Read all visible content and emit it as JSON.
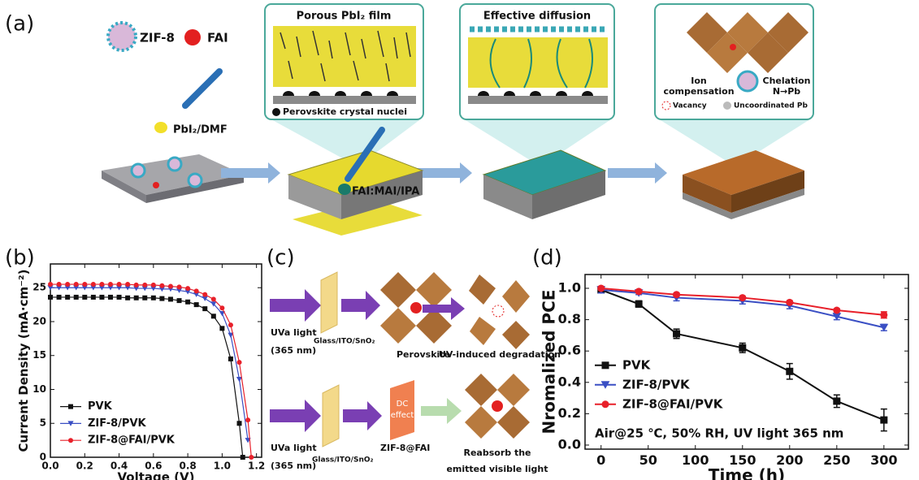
{
  "panel_labels": [
    "(a)",
    "(b)",
    "(c)",
    "(d)"
  ],
  "panel_a": {
    "zif8": "ZIF-8",
    "fai": "FAI",
    "precursor": "PbI₂/DMF",
    "box1_title": "Porous PbI₂ film",
    "box1_caption": "Perovskite crystal nuclei",
    "dropper": "FAI:MAI/IPA",
    "box2_title": "Effective diffusion",
    "box3": {
      "ion": [
        "Ion",
        "compensation"
      ],
      "chelation": [
        "Chelation",
        "N→Pb"
      ],
      "vacancy": "Vacancy",
      "uncoordinated": "Uncoordinated Pb"
    }
  },
  "panel_c": {
    "top": {
      "light": [
        "UVa light",
        "(365 nm)"
      ],
      "substrate": "Glass/ITO/SnO₂",
      "perovskite": "Perovskite",
      "degradation": "UV-induced degradation"
    },
    "bottom": {
      "light": [
        "UVa light",
        "(365 nm)"
      ],
      "substrate": "Glass/ITO/SnO₂",
      "dc": [
        "DC",
        "effect"
      ],
      "zif": "ZIF-8@FAI",
      "reabsorb": [
        "Reabsorb the",
        "emitted visible light"
      ]
    }
  },
  "chart_data": [
    {
      "type": "line",
      "xlabel": "Voltage (V)",
      "ylabel": "Current Density (mA·cm⁻²)",
      "xlim": [
        0,
        1.23
      ],
      "ylim": [
        0,
        28.5
      ],
      "xticks": [
        {
          "value": 0,
          "label": "0.0"
        },
        {
          "value": 0.2,
          "label": "0.2"
        },
        {
          "value": 0.4,
          "label": "0.4"
        },
        {
          "value": 0.6,
          "label": "0.6"
        },
        {
          "value": 0.8,
          "label": "0.8"
        },
        {
          "value": 1,
          "label": "1.0"
        },
        {
          "value": 1.2,
          "label": "1.2"
        }
      ],
      "yticks": [
        0,
        5,
        10,
        15,
        20,
        25
      ],
      "legend": "lower left",
      "series": [
        {
          "name": "PVK",
          "color": "#111111",
          "marker": "square",
          "x": [
            0,
            0.05,
            0.1,
            0.15,
            0.2,
            0.25,
            0.3,
            0.35,
            0.4,
            0.45,
            0.5,
            0.55,
            0.6,
            0.65,
            0.7,
            0.75,
            0.8,
            0.85,
            0.9,
            0.95,
            1,
            1.05,
            1.1,
            1.12
          ],
          "values": [
            23.6,
            23.6,
            23.6,
            23.6,
            23.6,
            23.6,
            23.6,
            23.6,
            23.6,
            23.5,
            23.5,
            23.5,
            23.5,
            23.4,
            23.3,
            23.1,
            22.9,
            22.5,
            21.9,
            20.8,
            19,
            14.5,
            5,
            0
          ]
        },
        {
          "name": "ZIF-8/PVK",
          "color": "#3a4fc4",
          "marker": "triangle",
          "x": [
            0,
            0.05,
            0.1,
            0.15,
            0.2,
            0.25,
            0.3,
            0.35,
            0.4,
            0.45,
            0.5,
            0.55,
            0.6,
            0.65,
            0.7,
            0.75,
            0.8,
            0.85,
            0.9,
            0.95,
            1,
            1.05,
            1.1,
            1.15
          ],
          "values": [
            25,
            25,
            25,
            25,
            25,
            25,
            25,
            25,
            25,
            25,
            24.9,
            24.9,
            24.9,
            24.8,
            24.8,
            24.6,
            24.4,
            24,
            23.4,
            22.6,
            21.2,
            18,
            11.5,
            2.5
          ]
        },
        {
          "name": "ZIF-8@FAI/PVK",
          "color": "#e8202a",
          "marker": "circle",
          "x": [
            0,
            0.05,
            0.1,
            0.15,
            0.2,
            0.25,
            0.3,
            0.35,
            0.4,
            0.45,
            0.5,
            0.55,
            0.6,
            0.65,
            0.7,
            0.75,
            0.8,
            0.85,
            0.9,
            0.95,
            1,
            1.05,
            1.1,
            1.15,
            1.17
          ],
          "values": [
            25.5,
            25.5,
            25.5,
            25.5,
            25.5,
            25.5,
            25.5,
            25.5,
            25.5,
            25.5,
            25.4,
            25.4,
            25.4,
            25.3,
            25.2,
            25.1,
            24.9,
            24.5,
            24,
            23.3,
            22,
            19.5,
            14,
            5.5,
            0
          ]
        }
      ]
    },
    {
      "type": "line",
      "xlabel": "Time (h)",
      "ylabel": "Nromalized PCE",
      "xlim": [
        -17,
        326
      ],
      "ylim": [
        -0.026,
        1.088
      ],
      "xticks": [
        0,
        50,
        100,
        150,
        200,
        250,
        300
      ],
      "yticks": [
        {
          "value": 0,
          "label": "0.0"
        },
        {
          "value": 0.2,
          "label": "0.2"
        },
        {
          "value": 0.4,
          "label": "0.4"
        },
        {
          "value": 0.6,
          "label": "0.6"
        },
        {
          "value": 0.8,
          "label": "0.8"
        },
        {
          "value": 1,
          "label": "1.0"
        }
      ],
      "legend": "lower left",
      "annotation": "Air@25 ℃, 50% RH, UV light 365 nm",
      "x": [
        0,
        40,
        80,
        150,
        200,
        250,
        300
      ],
      "series": [
        {
          "name": "PVK",
          "color": "#111111",
          "marker": "square",
          "values": [
            0.99,
            0.9,
            0.71,
            0.62,
            0.47,
            0.28,
            0.16
          ],
          "errors": [
            0.02,
            0.02,
            0.03,
            0.03,
            0.05,
            0.04,
            0.07
          ]
        },
        {
          "name": "ZIF-8/PVK",
          "color": "#3a4fc4",
          "marker": "triangle",
          "values": [
            0.99,
            0.97,
            0.94,
            0.92,
            0.89,
            0.82,
            0.75
          ],
          "errors": [
            0.02,
            0.01,
            0.02,
            0.02,
            0.02,
            0.02,
            0.02
          ]
        },
        {
          "name": "ZIF-8@FAI/PVK",
          "color": "#e8202a",
          "marker": "circle",
          "values": [
            1,
            0.98,
            0.96,
            0.94,
            0.91,
            0.86,
            0.83
          ],
          "errors": [
            0.01,
            0.01,
            0.01,
            0.01,
            0.01,
            0.01,
            0.02
          ]
        }
      ]
    }
  ]
}
